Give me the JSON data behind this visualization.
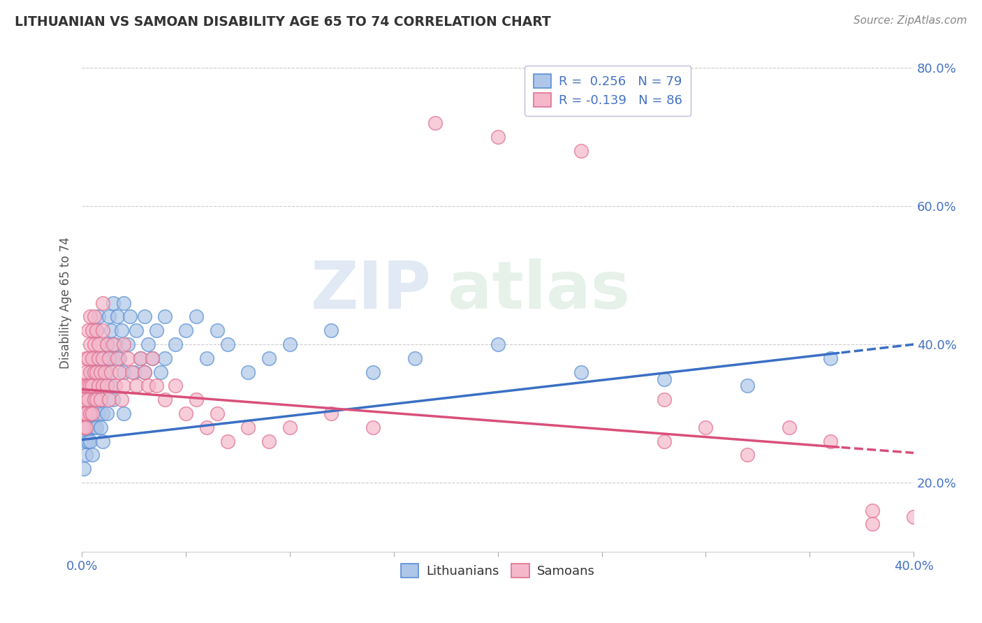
{
  "title": "LITHUANIAN VS SAMOAN DISABILITY AGE 65 TO 74 CORRELATION CHART",
  "source_text": "Source: ZipAtlas.com",
  "ylabel": "Disability Age 65 to 74",
  "xlim": [
    0.0,
    0.4
  ],
  "ylim": [
    0.1,
    0.82
  ],
  "xticks": [
    0.0,
    0.05,
    0.1,
    0.15,
    0.2,
    0.25,
    0.3,
    0.35,
    0.4
  ],
  "xticklabels": [
    "0.0%",
    "",
    "",
    "",
    "",
    "",
    "",
    "",
    "40.0%"
  ],
  "yticks": [
    0.2,
    0.4,
    0.6,
    0.8
  ],
  "yticklabels": [
    "20.0%",
    "40.0%",
    "60.0%",
    "80.0%"
  ],
  "R_lith": 0.256,
  "N_lith": 79,
  "R_samo": -0.139,
  "N_samo": 86,
  "blue_line_color": "#3a6fc4",
  "pink_line_color": "#d94f7a",
  "blue_scatter_face": "#aec6e8",
  "pink_scatter_face": "#f5b8cb",
  "blue_scatter_edge": "#5a8fd4",
  "pink_scatter_edge": "#e07090",
  "watermark_zip": "ZIP",
  "watermark_atlas": "atlas",
  "grid_color": "#cccccc",
  "trend_split": 0.365,
  "lith_x": [
    0.001,
    0.002,
    0.002,
    0.002,
    0.003,
    0.003,
    0.003,
    0.004,
    0.004,
    0.004,
    0.004,
    0.005,
    0.005,
    0.005,
    0.005,
    0.006,
    0.006,
    0.006,
    0.007,
    0.007,
    0.007,
    0.007,
    0.008,
    0.008,
    0.008,
    0.009,
    0.009,
    0.009,
    0.01,
    0.01,
    0.01,
    0.01,
    0.012,
    0.012,
    0.012,
    0.013,
    0.013,
    0.014,
    0.014,
    0.015,
    0.015,
    0.015,
    0.016,
    0.017,
    0.018,
    0.019,
    0.02,
    0.02,
    0.02,
    0.022,
    0.023,
    0.025,
    0.026,
    0.028,
    0.03,
    0.03,
    0.032,
    0.034,
    0.036,
    0.038,
    0.04,
    0.04,
    0.045,
    0.05,
    0.055,
    0.06,
    0.065,
    0.07,
    0.08,
    0.09,
    0.1,
    0.12,
    0.14,
    0.16,
    0.2,
    0.24,
    0.28,
    0.32,
    0.36
  ],
  "lith_y": [
    0.22,
    0.24,
    0.26,
    0.28,
    0.26,
    0.3,
    0.32,
    0.28,
    0.34,
    0.3,
    0.26,
    0.32,
    0.28,
    0.24,
    0.36,
    0.38,
    0.32,
    0.28,
    0.36,
    0.32,
    0.28,
    0.42,
    0.34,
    0.3,
    0.44,
    0.36,
    0.32,
    0.28,
    0.38,
    0.34,
    0.3,
    0.26,
    0.4,
    0.36,
    0.3,
    0.44,
    0.38,
    0.42,
    0.34,
    0.46,
    0.38,
    0.32,
    0.4,
    0.44,
    0.38,
    0.42,
    0.46,
    0.36,
    0.3,
    0.4,
    0.44,
    0.36,
    0.42,
    0.38,
    0.44,
    0.36,
    0.4,
    0.38,
    0.42,
    0.36,
    0.44,
    0.38,
    0.4,
    0.42,
    0.44,
    0.38,
    0.42,
    0.4,
    0.36,
    0.38,
    0.4,
    0.42,
    0.36,
    0.38,
    0.4,
    0.36,
    0.35,
    0.34,
    0.38
  ],
  "samo_x": [
    0.0,
    0.0,
    0.0,
    0.001,
    0.001,
    0.001,
    0.001,
    0.002,
    0.002,
    0.002,
    0.002,
    0.002,
    0.003,
    0.003,
    0.003,
    0.003,
    0.004,
    0.004,
    0.004,
    0.004,
    0.004,
    0.005,
    0.005,
    0.005,
    0.005,
    0.006,
    0.006,
    0.006,
    0.006,
    0.007,
    0.007,
    0.007,
    0.008,
    0.008,
    0.008,
    0.009,
    0.009,
    0.01,
    0.01,
    0.01,
    0.01,
    0.011,
    0.012,
    0.012,
    0.013,
    0.013,
    0.014,
    0.015,
    0.016,
    0.017,
    0.018,
    0.019,
    0.02,
    0.02,
    0.022,
    0.024,
    0.026,
    0.028,
    0.03,
    0.032,
    0.034,
    0.036,
    0.04,
    0.045,
    0.05,
    0.055,
    0.06,
    0.065,
    0.07,
    0.08,
    0.09,
    0.1,
    0.12,
    0.14,
    0.17,
    0.2,
    0.24,
    0.28,
    0.28,
    0.3,
    0.32,
    0.34,
    0.36,
    0.38,
    0.38,
    0.4
  ],
  "samo_y": [
    0.28,
    0.32,
    0.3,
    0.34,
    0.3,
    0.28,
    0.32,
    0.36,
    0.3,
    0.34,
    0.38,
    0.28,
    0.34,
    0.38,
    0.32,
    0.42,
    0.36,
    0.4,
    0.44,
    0.34,
    0.3,
    0.38,
    0.34,
    0.3,
    0.42,
    0.36,
    0.4,
    0.32,
    0.44,
    0.36,
    0.42,
    0.32,
    0.38,
    0.34,
    0.4,
    0.36,
    0.32,
    0.38,
    0.42,
    0.34,
    0.46,
    0.36,
    0.4,
    0.34,
    0.38,
    0.32,
    0.36,
    0.4,
    0.34,
    0.38,
    0.36,
    0.32,
    0.4,
    0.34,
    0.38,
    0.36,
    0.34,
    0.38,
    0.36,
    0.34,
    0.38,
    0.34,
    0.32,
    0.34,
    0.3,
    0.32,
    0.28,
    0.3,
    0.26,
    0.28,
    0.26,
    0.28,
    0.3,
    0.28,
    0.72,
    0.7,
    0.68,
    0.26,
    0.32,
    0.28,
    0.24,
    0.28,
    0.26,
    0.16,
    0.14,
    0.15
  ]
}
